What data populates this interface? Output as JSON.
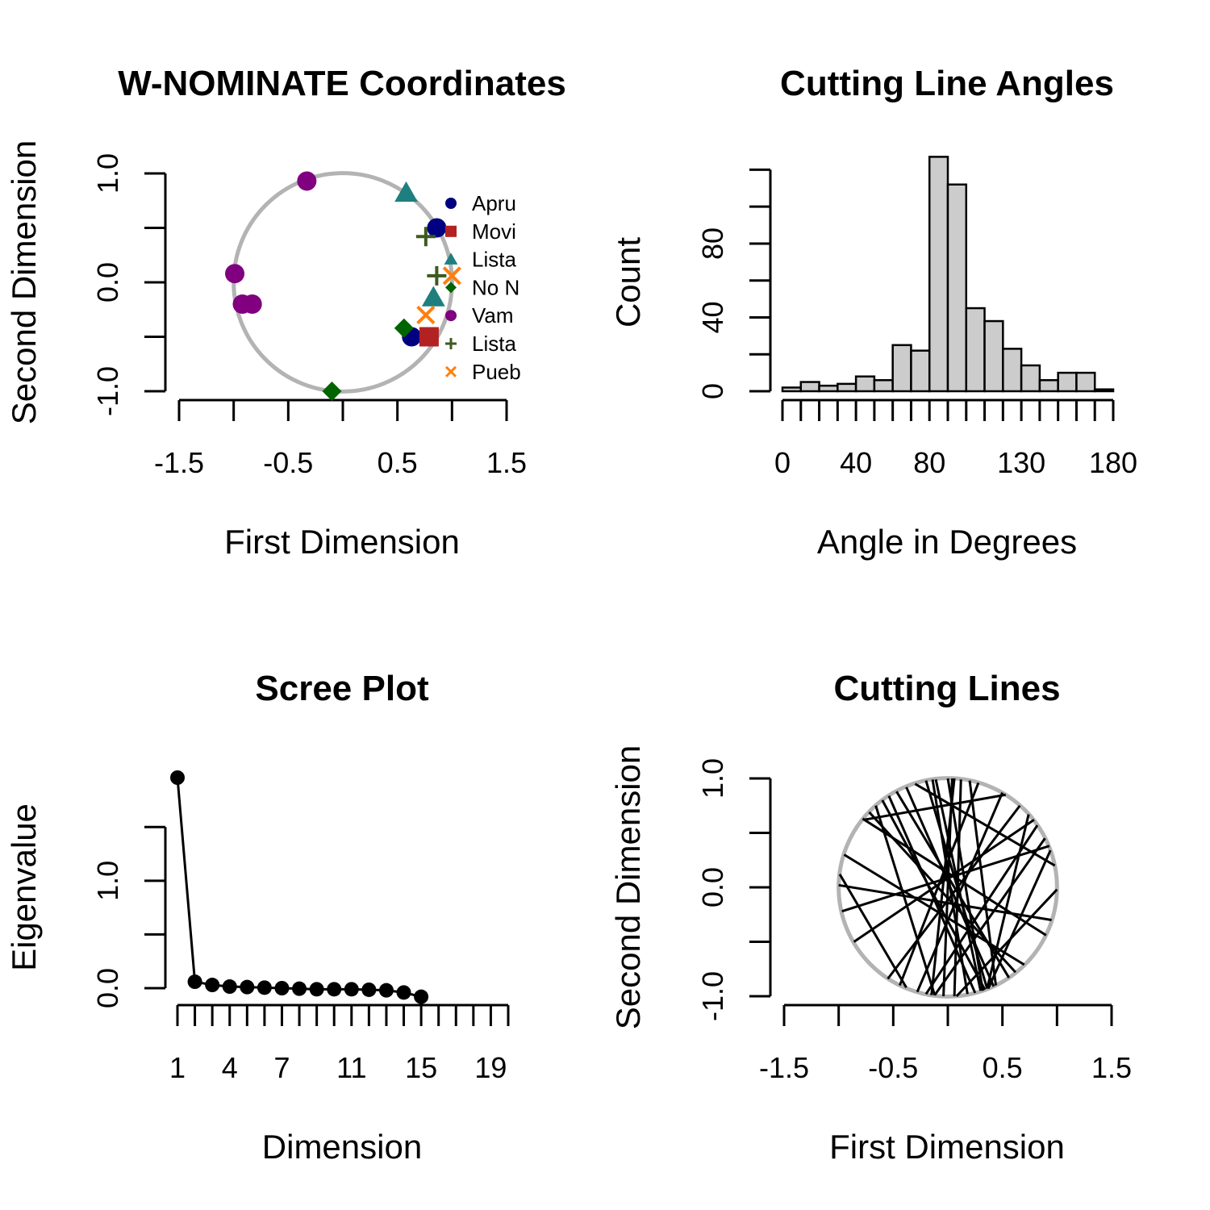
{
  "chart_data": [
    {
      "id": "coords",
      "type": "scatter",
      "title": "W-NOMINATE Coordinates",
      "xlabel": "First Dimension",
      "ylabel": "Second Dimension",
      "xlim": [
        -1.5,
        1.5
      ],
      "ylim": [
        -1.0,
        1.0
      ],
      "xticks": [
        -1.5,
        -1.0,
        -0.5,
        0.0,
        0.5,
        1.0,
        1.5
      ],
      "xtick_labels": [
        "-1.5",
        "",
        "-0.5",
        "",
        "0.5",
        "",
        "1.5"
      ],
      "yticks": [
        -1.0,
        -0.5,
        0.0,
        0.5,
        1.0
      ],
      "ytick_labels": [
        "-1.0",
        "",
        "0.0",
        "",
        "1.0"
      ],
      "unit_circle": true,
      "circle_color": "#b3b3b3",
      "legend_position": "right",
      "series": [
        {
          "name": "Apru",
          "marker": "circle",
          "color": "#000080",
          "points": [
            [
              0.86,
              0.5
            ],
            [
              0.63,
              -0.5
            ]
          ]
        },
        {
          "name": "Movi",
          "marker": "square",
          "color": "#b22222",
          "points": [
            [
              0.79,
              -0.5
            ]
          ]
        },
        {
          "name": "Lista",
          "marker": "triangle",
          "color": "#1f7f7f",
          "points": [
            [
              0.58,
              0.82
            ],
            [
              0.83,
              -0.14
            ]
          ]
        },
        {
          "name": "No N",
          "marker": "diamond",
          "color": "#006400",
          "points": [
            [
              -0.1,
              -1.0
            ],
            [
              0.56,
              -0.42
            ]
          ]
        },
        {
          "name": "Vam",
          "marker": "circle",
          "color": "#800080",
          "points": [
            [
              -0.33,
              0.93
            ],
            [
              -0.99,
              0.08
            ],
            [
              -0.92,
              -0.2
            ],
            [
              -0.83,
              -0.2
            ]
          ]
        },
        {
          "name": "Lista",
          "marker": "plus",
          "color": "#3d5a1e",
          "points": [
            [
              0.76,
              0.42
            ],
            [
              0.86,
              0.06
            ]
          ]
        },
        {
          "name": "Pueb",
          "marker": "cross",
          "color": "#ff7f0e",
          "points": [
            [
              1.0,
              0.06
            ],
            [
              0.76,
              -0.3
            ]
          ]
        }
      ]
    },
    {
      "id": "angles",
      "type": "bar",
      "title": "Cutting Line Angles",
      "xlabel": "Angle in Degrees",
      "ylabel": "Count",
      "xlim": [
        0,
        180
      ],
      "ylim": [
        0,
        118
      ],
      "bin_width": 10,
      "bin_starts": [
        0,
        10,
        20,
        30,
        40,
        50,
        60,
        70,
        80,
        90,
        100,
        110,
        120,
        130,
        140,
        150,
        160,
        170
      ],
      "values": [
        2,
        5,
        3,
        4,
        8,
        6,
        25,
        22,
        127,
        112,
        45,
        38,
        23,
        14,
        6,
        10,
        10,
        1
      ],
      "bar_color": "#cccccc",
      "xticks": [
        0,
        10,
        20,
        30,
        40,
        50,
        60,
        70,
        80,
        90,
        100,
        110,
        120,
        130,
        140,
        150,
        160,
        170,
        180
      ],
      "xtick_labels": [
        "0",
        "",
        "",
        "",
        "40",
        "",
        "",
        "",
        "80",
        "",
        "",
        "",
        "",
        "130",
        "",
        "",
        "",
        "",
        "180"
      ],
      "yticks": [
        0,
        20,
        40,
        60,
        80,
        100,
        120
      ],
      "ytick_labels": [
        "0",
        "",
        "40",
        "",
        "80",
        "",
        ""
      ]
    },
    {
      "id": "scree",
      "type": "line",
      "title": "Scree Plot",
      "xlabel": "Dimension",
      "ylabel": "Eigenvalue",
      "x": [
        1,
        2,
        3,
        4,
        5,
        6,
        7,
        8,
        9,
        10,
        11,
        12,
        13,
        14,
        15
      ],
      "values": [
        1.96,
        0.06,
        0.03,
        0.015,
        0.01,
        0.005,
        0.0,
        -0.005,
        -0.01,
        -0.01,
        -0.01,
        -0.015,
        -0.02,
        -0.04,
        -0.08
      ],
      "xlim": [
        1,
        20
      ],
      "ylim": [
        0,
        1.96
      ],
      "xticks": [
        1,
        2,
        3,
        4,
        5,
        6,
        7,
        8,
        9,
        10,
        11,
        12,
        13,
        14,
        15,
        16,
        17,
        18,
        19,
        20
      ],
      "xtick_labels": [
        "1",
        "",
        "",
        "4",
        "",
        "",
        "7",
        "",
        "",
        "",
        "11",
        "",
        "",
        "",
        "15",
        "",
        "",
        "",
        "19",
        ""
      ],
      "yticks": [
        0.0,
        0.5,
        1.0,
        1.5
      ],
      "ytick_labels": [
        "0.0",
        "",
        "1.0",
        ""
      ]
    },
    {
      "id": "cutlines",
      "type": "line",
      "title": "Cutting Lines",
      "xlabel": "First Dimension",
      "ylabel": "Second Dimension",
      "xlim": [
        -1.5,
        1.5
      ],
      "ylim": [
        -1.0,
        1.0
      ],
      "unit_circle": true,
      "circle_color": "#b3b3b3",
      "xticks": [
        -1.5,
        -1.0,
        -0.5,
        0.0,
        0.5,
        1.0,
        1.5
      ],
      "xtick_labels": [
        "-1.5",
        "",
        "-0.5",
        "",
        "0.5",
        "",
        "1.5"
      ],
      "yticks": [
        -1.0,
        -0.5,
        0.0,
        0.5,
        1.0
      ],
      "ytick_labels": [
        "-1.0",
        "",
        "0.0",
        "",
        "1.0"
      ],
      "segments": [
        [
          [
            -0.77,
            0.62
          ],
          [
            0.53,
            0.85
          ]
        ],
        [
          [
            -0.99,
            0.12
          ],
          [
            -0.38,
            -0.92
          ]
        ],
        [
          [
            -0.97,
            -0.22
          ],
          [
            0.93,
            0.38
          ]
        ],
        [
          [
            -0.86,
            -0.5
          ],
          [
            0.79,
            0.62
          ]
        ],
        [
          [
            -0.6,
            0.8
          ],
          [
            0.34,
            -0.94
          ]
        ],
        [
          [
            -0.66,
            0.75
          ],
          [
            -0.12,
            -0.99
          ]
        ],
        [
          [
            -0.47,
            0.88
          ],
          [
            0.56,
            -0.83
          ]
        ],
        [
          [
            -0.38,
            0.92
          ],
          [
            0.42,
            -0.91
          ]
        ],
        [
          [
            -0.2,
            0.98
          ],
          [
            0.36,
            -0.93
          ]
        ],
        [
          [
            -0.11,
            0.99
          ],
          [
            0.3,
            -0.95
          ]
        ],
        [
          [
            0.0,
            1.0
          ],
          [
            0.32,
            -0.95
          ]
        ],
        [
          [
            0.06,
            1.0
          ],
          [
            -0.15,
            -0.99
          ]
        ],
        [
          [
            0.04,
            1.0
          ],
          [
            -0.04,
            -1.0
          ]
        ],
        [
          [
            0.12,
            0.99
          ],
          [
            0.06,
            -1.0
          ]
        ],
        [
          [
            0.2,
            0.98
          ],
          [
            0.44,
            -0.9
          ]
        ],
        [
          [
            0.5,
            0.87
          ],
          [
            -0.28,
            -0.96
          ]
        ],
        [
          [
            0.74,
            0.67
          ],
          [
            0.36,
            -0.93
          ]
        ],
        [
          [
            0.66,
            0.75
          ],
          [
            -0.55,
            -0.84
          ]
        ],
        [
          [
            0.89,
            0.45
          ],
          [
            -0.12,
            -0.99
          ]
        ],
        [
          [
            0.94,
            0.34
          ],
          [
            0.37,
            -0.93
          ]
        ],
        [
          [
            1.0,
            -0.02
          ],
          [
            0.08,
            -1.0
          ]
        ],
        [
          [
            -1.0,
            0.02
          ],
          [
            0.95,
            -0.3
          ]
        ],
        [
          [
            -0.78,
            0.63
          ],
          [
            0.9,
            -0.44
          ]
        ],
        [
          [
            -0.95,
            0.3
          ],
          [
            0.7,
            -0.71
          ]
        ],
        [
          [
            -0.3,
            0.95
          ],
          [
            0.98,
            0.2
          ]
        ],
        [
          [
            -0.54,
            0.84
          ],
          [
            0.25,
            -0.97
          ]
        ],
        [
          [
            0.28,
            0.96
          ],
          [
            -0.44,
            -0.9
          ]
        ],
        [
          [
            -0.72,
            0.69
          ],
          [
            0.62,
            -0.78
          ]
        ],
        [
          [
            0.82,
            0.57
          ],
          [
            -0.2,
            -0.98
          ]
        ],
        [
          [
            -0.14,
            0.99
          ],
          [
            0.18,
            -0.98
          ]
        ]
      ]
    }
  ]
}
